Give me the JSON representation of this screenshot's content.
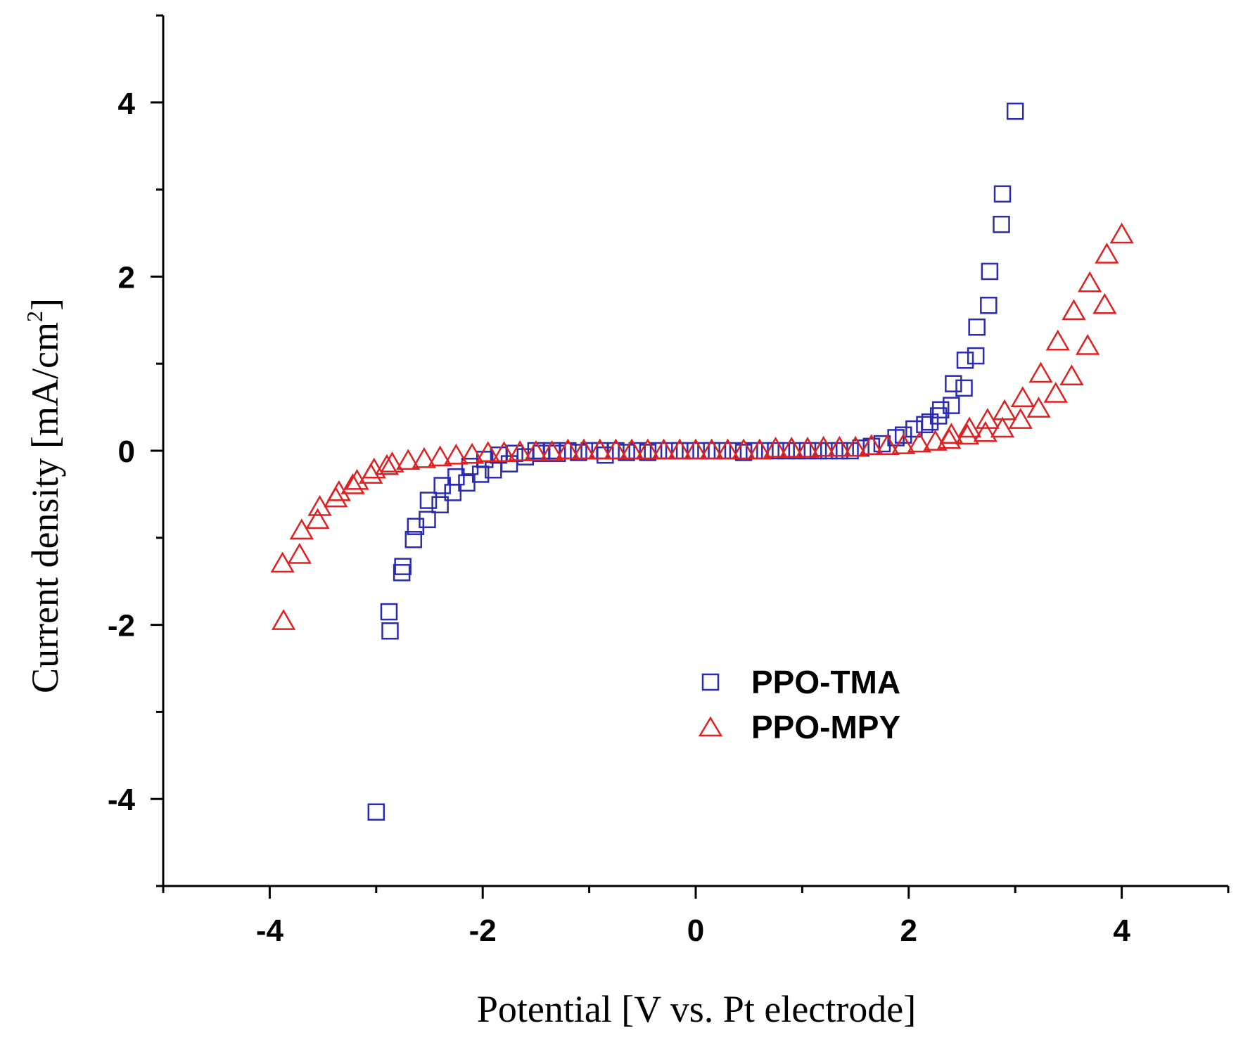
{
  "chart_data": {
    "type": "scatter",
    "title": "",
    "xlabel": "Potential [V vs. Pt electrode]",
    "ylabel_main": "Current density [mA/cm",
    "ylabel_sup": "2",
    "ylabel_end": "]",
    "xlim": [
      -5,
      5
    ],
    "ylim": [
      -5,
      5
    ],
    "xticks": [
      -4,
      -2,
      0,
      2,
      4
    ],
    "yticks": [
      -4,
      -2,
      0,
      2,
      4
    ],
    "grid": false,
    "legend_position": "lower-center",
    "series": [
      {
        "name": "PPO-TMA",
        "marker": "square",
        "color": "#2b2bb0",
        "points": [
          [
            -3.0,
            -4.15
          ],
          [
            -2.88,
            -1.85
          ],
          [
            -2.87,
            -2.07
          ],
          [
            -2.76,
            -1.4
          ],
          [
            -2.75,
            -1.33
          ],
          [
            -2.65,
            -1.02
          ],
          [
            -2.63,
            -0.87
          ],
          [
            -2.52,
            -0.79
          ],
          [
            -2.51,
            -0.57
          ],
          [
            -2.4,
            -0.62
          ],
          [
            -2.38,
            -0.4
          ],
          [
            -2.28,
            -0.48
          ],
          [
            -2.25,
            -0.3
          ],
          [
            -2.15,
            -0.37
          ],
          [
            -2.12,
            -0.18
          ],
          [
            -2.02,
            -0.27
          ],
          [
            -1.98,
            -0.1
          ],
          [
            -1.9,
            -0.22
          ],
          [
            -1.85,
            -0.05
          ],
          [
            -1.75,
            -0.15
          ],
          [
            -1.7,
            -0.03
          ],
          [
            -1.6,
            -0.07
          ],
          [
            -1.5,
            0.0
          ],
          [
            -1.45,
            -0.03
          ],
          [
            -1.35,
            0.0
          ],
          [
            -1.3,
            -0.03
          ],
          [
            -1.2,
            0.0
          ],
          [
            -1.1,
            -0.02
          ],
          [
            -1.0,
            0.0
          ],
          [
            -0.9,
            0.0
          ],
          [
            -0.85,
            -0.05
          ],
          [
            -0.75,
            0.0
          ],
          [
            -0.65,
            -0.02
          ],
          [
            -0.55,
            0.0
          ],
          [
            -0.45,
            -0.02
          ],
          [
            -0.35,
            0.0
          ],
          [
            -0.25,
            0.0
          ],
          [
            -0.15,
            0.0
          ],
          [
            -0.05,
            0.0
          ],
          [
            0.05,
            0.0
          ],
          [
            0.15,
            0.0
          ],
          [
            0.25,
            0.0
          ],
          [
            0.35,
            0.0
          ],
          [
            0.45,
            -0.02
          ],
          [
            0.55,
            0.0
          ],
          [
            0.65,
            0.0
          ],
          [
            0.75,
            0.0
          ],
          [
            0.85,
            0.0
          ],
          [
            0.95,
            0.0
          ],
          [
            1.05,
            0.0
          ],
          [
            1.15,
            0.0
          ],
          [
            1.25,
            0.0
          ],
          [
            1.35,
            0.0
          ],
          [
            1.45,
            0.0
          ],
          [
            1.55,
            0.03
          ],
          [
            1.65,
            0.05
          ],
          [
            1.75,
            0.08
          ],
          [
            1.88,
            0.15
          ],
          [
            1.95,
            0.18
          ],
          [
            2.05,
            0.25
          ],
          [
            2.15,
            0.3
          ],
          [
            2.2,
            0.33
          ],
          [
            2.28,
            0.4
          ],
          [
            2.3,
            0.47
          ],
          [
            2.4,
            0.52
          ],
          [
            2.42,
            0.77
          ],
          [
            2.52,
            0.72
          ],
          [
            2.53,
            1.04
          ],
          [
            2.63,
            1.09
          ],
          [
            2.64,
            1.42
          ],
          [
            2.75,
            1.67
          ],
          [
            2.76,
            2.06
          ],
          [
            2.87,
            2.6
          ],
          [
            2.88,
            2.95
          ],
          [
            3.0,
            3.9
          ]
        ]
      },
      {
        "name": "PPO-MPY",
        "marker": "triangle",
        "color": "#e02020",
        "points": [
          [
            -3.87,
            -1.96
          ],
          [
            -3.88,
            -1.3
          ],
          [
            -3.72,
            -1.2
          ],
          [
            -3.7,
            -0.92
          ],
          [
            -3.55,
            -0.8
          ],
          [
            -3.53,
            -0.65
          ],
          [
            -3.38,
            -0.55
          ],
          [
            -3.35,
            -0.48
          ],
          [
            -3.22,
            -0.4
          ],
          [
            -3.18,
            -0.35
          ],
          [
            -3.05,
            -0.28
          ],
          [
            -3.02,
            -0.22
          ],
          [
            -2.9,
            -0.18
          ],
          [
            -2.85,
            -0.15
          ],
          [
            -2.7,
            -0.12
          ],
          [
            -2.55,
            -0.1
          ],
          [
            -2.4,
            -0.08
          ],
          [
            -2.25,
            -0.06
          ],
          [
            -2.1,
            -0.05
          ],
          [
            -1.95,
            -0.03
          ],
          [
            -1.8,
            -0.03
          ],
          [
            -1.65,
            -0.02
          ],
          [
            -1.5,
            -0.02
          ],
          [
            -1.35,
            -0.02
          ],
          [
            -1.2,
            0.0
          ],
          [
            -1.05,
            0.0
          ],
          [
            -0.9,
            0.0
          ],
          [
            -0.75,
            0.0
          ],
          [
            -0.6,
            0.0
          ],
          [
            -0.45,
            0.0
          ],
          [
            -0.3,
            0.0
          ],
          [
            -0.15,
            0.0
          ],
          [
            0.0,
            0.0
          ],
          [
            0.15,
            0.0
          ],
          [
            0.3,
            0.0
          ],
          [
            0.45,
            0.0
          ],
          [
            0.6,
            0.0
          ],
          [
            0.75,
            0.02
          ],
          [
            0.9,
            0.02
          ],
          [
            1.05,
            0.02
          ],
          [
            1.2,
            0.03
          ],
          [
            1.35,
            0.03
          ],
          [
            1.5,
            0.03
          ],
          [
            1.65,
            0.05
          ],
          [
            1.8,
            0.05
          ],
          [
            1.95,
            0.06
          ],
          [
            2.1,
            0.08
          ],
          [
            2.25,
            0.1
          ],
          [
            2.38,
            0.12
          ],
          [
            2.4,
            0.18
          ],
          [
            2.55,
            0.17
          ],
          [
            2.57,
            0.25
          ],
          [
            2.72,
            0.2
          ],
          [
            2.74,
            0.35
          ],
          [
            2.88,
            0.25
          ],
          [
            2.9,
            0.45
          ],
          [
            3.05,
            0.35
          ],
          [
            3.07,
            0.6
          ],
          [
            3.22,
            0.48
          ],
          [
            3.24,
            0.88
          ],
          [
            3.38,
            0.65
          ],
          [
            3.4,
            1.25
          ],
          [
            3.53,
            0.85
          ],
          [
            3.55,
            1.6
          ],
          [
            3.68,
            1.2
          ],
          [
            3.7,
            1.92
          ],
          [
            3.84,
            1.67
          ],
          [
            3.86,
            2.25
          ],
          [
            4.0,
            2.48
          ]
        ]
      }
    ]
  }
}
